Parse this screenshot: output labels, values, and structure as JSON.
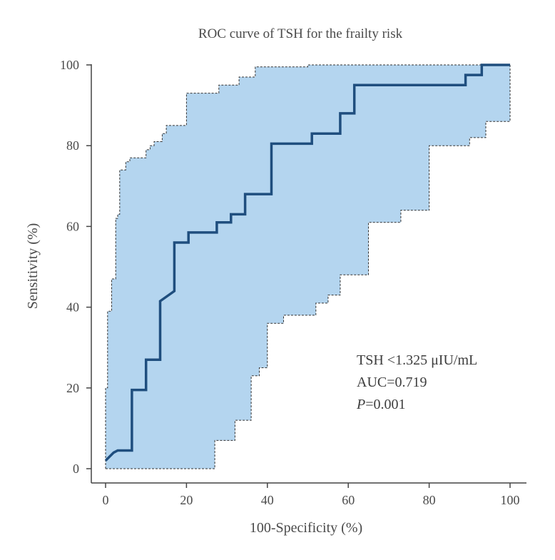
{
  "chart_data": {
    "type": "line",
    "title": "ROC curve of TSH for the frailty risk",
    "xlabel": "100-Specificity (%)",
    "ylabel": "Sensitivity (%)",
    "xlim": [
      0,
      100
    ],
    "ylim": [
      0,
      100
    ],
    "xticks": [
      0,
      20,
      40,
      60,
      80,
      100
    ],
    "yticks": [
      0,
      20,
      40,
      60,
      80,
      100
    ],
    "grid": false,
    "series": [
      {
        "role": "roc_curve",
        "color": "#1f4e7e",
        "points": [
          [
            0,
            2
          ],
          [
            2,
            4
          ],
          [
            3,
            4.5
          ],
          [
            6.5,
            4.5
          ],
          [
            6.5,
            19.5
          ],
          [
            10,
            19.5
          ],
          [
            10,
            27
          ],
          [
            13.5,
            27
          ],
          [
            13.5,
            41.5
          ],
          [
            17,
            44
          ],
          [
            17,
            56
          ],
          [
            20.5,
            56
          ],
          [
            20.5,
            58.5
          ],
          [
            27.5,
            58.5
          ],
          [
            27.5,
            61
          ],
          [
            31,
            61
          ],
          [
            31,
            63
          ],
          [
            34.5,
            63
          ],
          [
            34.5,
            68
          ],
          [
            41,
            68
          ],
          [
            41,
            80.5
          ],
          [
            51,
            80.5
          ],
          [
            51,
            83
          ],
          [
            58,
            83
          ],
          [
            58,
            88
          ],
          [
            61.5,
            88
          ],
          [
            61.5,
            95
          ],
          [
            89,
            95
          ],
          [
            89,
            97.5
          ],
          [
            93,
            97.5
          ],
          [
            93,
            100
          ],
          [
            100,
            100
          ]
        ]
      },
      {
        "role": "ci_upper",
        "color": "#333333",
        "points": [
          [
            0,
            0
          ],
          [
            0,
            20
          ],
          [
            0.5,
            20
          ],
          [
            0.5,
            39
          ],
          [
            1.5,
            39
          ],
          [
            1.5,
            47
          ],
          [
            2.5,
            47
          ],
          [
            2.5,
            62
          ],
          [
            3,
            62
          ],
          [
            3,
            63
          ],
          [
            3.5,
            63
          ],
          [
            3.5,
            74
          ],
          [
            5,
            74
          ],
          [
            5,
            76
          ],
          [
            6,
            76
          ],
          [
            6,
            77
          ],
          [
            10,
            77
          ],
          [
            10,
            79
          ],
          [
            11,
            79
          ],
          [
            11,
            80
          ],
          [
            12,
            80
          ],
          [
            12,
            81
          ],
          [
            14,
            81
          ],
          [
            14,
            83
          ],
          [
            15,
            83
          ],
          [
            15,
            85
          ],
          [
            20,
            85
          ],
          [
            20,
            93
          ],
          [
            28,
            93
          ],
          [
            28,
            95
          ],
          [
            33,
            95
          ],
          [
            33,
            97
          ],
          [
            37,
            97
          ],
          [
            37,
            99.5
          ],
          [
            50,
            99.5
          ],
          [
            50,
            100
          ],
          [
            100,
            100
          ]
        ]
      },
      {
        "role": "ci_lower",
        "color": "#333333",
        "points": [
          [
            0,
            0
          ],
          [
            27,
            0
          ],
          [
            27,
            7
          ],
          [
            32,
            7
          ],
          [
            32,
            12
          ],
          [
            36,
            12
          ],
          [
            36,
            23
          ],
          [
            38,
            23
          ],
          [
            38,
            25
          ],
          [
            40,
            25
          ],
          [
            40,
            36
          ],
          [
            44,
            36
          ],
          [
            44,
            38
          ],
          [
            52,
            38
          ],
          [
            52,
            41
          ],
          [
            55,
            41
          ],
          [
            55,
            43
          ],
          [
            58,
            43
          ],
          [
            58,
            48
          ],
          [
            65,
            48
          ],
          [
            65,
            61
          ],
          [
            73,
            61
          ],
          [
            73,
            64
          ],
          [
            80,
            64
          ],
          [
            80,
            80
          ],
          [
            90,
            80
          ],
          [
            90,
            82
          ],
          [
            94,
            82
          ],
          [
            94,
            86
          ],
          [
            100,
            86
          ],
          [
            100,
            100
          ]
        ]
      }
    ],
    "ci_fill_color": "#b4d5ef",
    "annotations": [
      "TSH <1.325 μIU/mL",
      "AUC=0.719",
      "P=0.001"
    ]
  }
}
